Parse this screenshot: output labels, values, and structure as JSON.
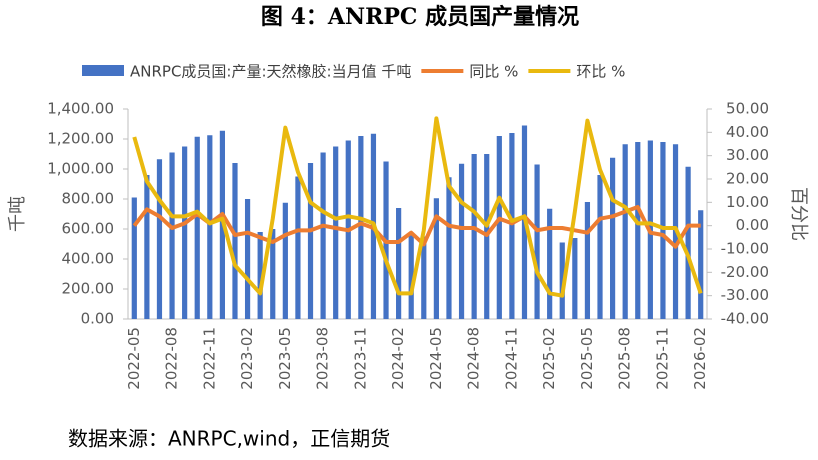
{
  "chart_data": {
    "type": "bar_line",
    "title": "图 4：ANRPC 成员国产量情况",
    "source": "数据来源：ANRPC,wind，正信期货",
    "y_label": "千吨",
    "y2_label": "百分比",
    "categories": [
      "2022-05",
      null,
      null,
      "2022-08",
      null,
      null,
      "2022-11",
      null,
      null,
      "2023-02",
      null,
      null,
      "2023-05",
      null,
      null,
      "2023-08",
      null,
      null,
      "2023-11",
      null,
      null,
      "2024-02",
      null,
      null,
      "2024-05",
      null,
      null,
      "2024-08",
      null,
      null,
      "2024-11",
      null,
      null,
      "2025-02",
      null,
      null,
      "2025-05",
      null,
      null,
      "2025-08",
      null,
      null,
      "2025-11",
      null,
      null,
      "2026-02"
    ],
    "series": [
      {
        "name": "ANRPC成员国:产量:天然橡胶:当月值 千吨",
        "kind": "bar",
        "color": "#4472c4",
        "values": [
          810,
          960,
          1065,
          1110,
          1150,
          1215,
          1225,
          1255,
          1040,
          800,
          580,
          600,
          775,
          950,
          1040,
          1110,
          1150,
          1190,
          1220,
          1235,
          1050,
          740,
          560,
          550,
          805,
          945,
          1035,
          1100,
          1100,
          1220,
          1240,
          1290,
          1030,
          735,
          510,
          540,
          780,
          960,
          1075,
          1165,
          1180,
          1190,
          1180,
          1165,
          1015,
          725
        ]
      },
      {
        "name": "同比 %",
        "kind": "line",
        "axis": "y2",
        "color": "#ed7d31",
        "values": [
          0,
          7,
          4,
          -1,
          1,
          5,
          1,
          5,
          -4,
          -3,
          -5,
          -7,
          -4,
          -2,
          -2,
          0,
          -1,
          -2,
          1,
          -1,
          -7,
          -7,
          -3,
          -8,
          4,
          0,
          -1,
          -1,
          -4,
          3,
          1,
          4,
          -2,
          -1,
          -1,
          -2,
          -3,
          3,
          4,
          6,
          8,
          -3,
          -4,
          -9,
          0,
          0
        ]
      },
      {
        "name": "环比 %",
        "kind": "line",
        "axis": "y2",
        "color": "#e9b90f",
        "values": [
          38,
          19,
          11,
          4,
          4,
          6,
          1,
          3,
          -17,
          -23,
          -29,
          3,
          42,
          23,
          10,
          6,
          3,
          4,
          3,
          1,
          -15,
          -29,
          -29,
          -2,
          46,
          17,
          10,
          6,
          0,
          12,
          2,
          4,
          -20,
          -29,
          -30,
          6,
          45,
          24,
          11,
          8,
          1,
          1,
          -1,
          -1,
          -13,
          -29
        ]
      }
    ],
    "ylim": [
      0,
      1400
    ],
    "yticks": [
      {
        "value": 0,
        "label": "0.00"
      },
      {
        "value": 200,
        "label": "200.00"
      },
      {
        "value": 400,
        "label": "400.00"
      },
      {
        "value": 600,
        "label": "600.00"
      },
      {
        "value": 800,
        "label": "800.00"
      },
      {
        "value": 1000,
        "label": "1,000.00"
      },
      {
        "value": 1200,
        "label": "1,200.00"
      },
      {
        "value": 1400,
        "label": "1,400.00"
      }
    ],
    "y2lim": [
      -40,
      50
    ],
    "y2ticks": [
      {
        "value": -40,
        "label": "-40.00"
      },
      {
        "value": -30,
        "label": "-30.00"
      },
      {
        "value": -20,
        "label": "-20.00"
      },
      {
        "value": -10,
        "label": "-10.00"
      },
      {
        "value": 0,
        "label": "0.00"
      },
      {
        "value": 10,
        "label": "10.00"
      },
      {
        "value": 20,
        "label": "20.00"
      },
      {
        "value": 30,
        "label": "30.00"
      },
      {
        "value": 40,
        "label": "40.00"
      },
      {
        "value": 50,
        "label": "50.00"
      }
    ]
  }
}
